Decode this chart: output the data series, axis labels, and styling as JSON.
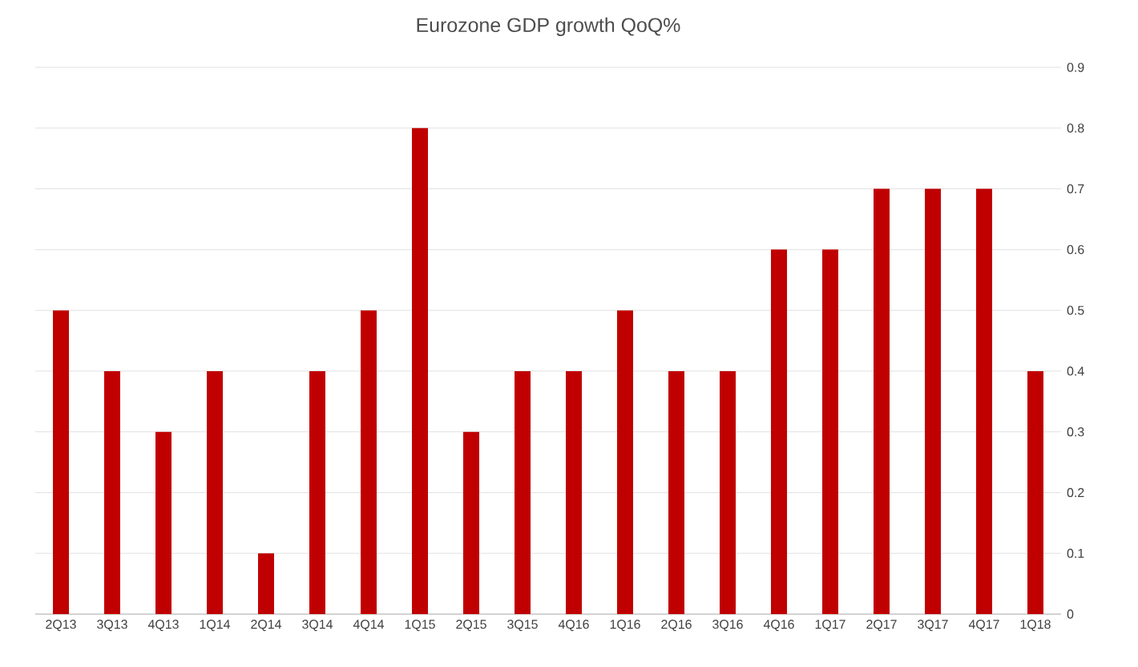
{
  "chart_data": {
    "type": "bar",
    "title": "Eurozone GDP growth QoQ%",
    "categories": [
      "2Q13",
      "3Q13",
      "4Q13",
      "1Q14",
      "2Q14",
      "3Q14",
      "4Q14",
      "1Q15",
      "2Q15",
      "3Q15",
      "4Q16",
      "1Q16",
      "2Q16",
      "3Q16",
      "4Q16",
      "1Q17",
      "2Q17",
      "3Q17",
      "4Q17",
      "1Q18"
    ],
    "values": [
      0.5,
      0.4,
      0.3,
      0.4,
      0.1,
      0.4,
      0.5,
      0.8,
      0.3,
      0.4,
      0.4,
      0.5,
      0.4,
      0.4,
      0.6,
      0.6,
      0.7,
      0.7,
      0.7,
      0.4
    ],
    "color": "#c00000",
    "ylim": [
      0,
      0.9
    ],
    "yticks": [
      0,
      0.1,
      0.2,
      0.3,
      0.4,
      0.5,
      0.6,
      0.7,
      0.8,
      0.9
    ],
    "grid": "y"
  }
}
